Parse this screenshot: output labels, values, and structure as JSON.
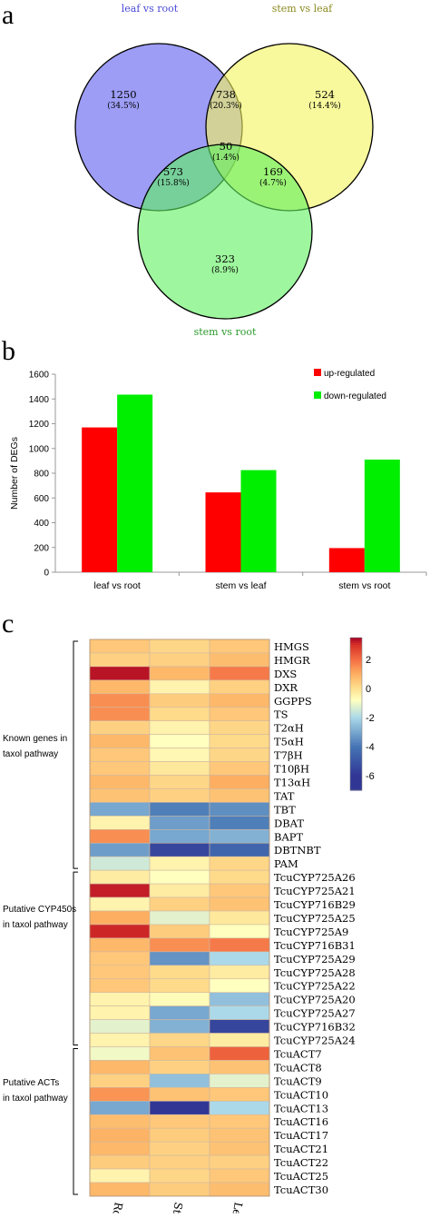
{
  "panels": {
    "a": "a",
    "b": "b",
    "c": "c"
  },
  "chart_data": [
    {
      "type": "venn",
      "sets": [
        {
          "name": "leaf vs root",
          "color": "#5b5bf0"
        },
        {
          "name": "stem vs leaf",
          "color": "#f3f35a"
        },
        {
          "name": "stem vs root",
          "color": "#5ef05e"
        }
      ],
      "regions": [
        {
          "sets": [
            "leaf vs root"
          ],
          "count": "1250",
          "percent": "(34.5%)"
        },
        {
          "sets": [
            "leaf vs root",
            "stem vs leaf"
          ],
          "count": "738",
          "percent": "(20.3%)"
        },
        {
          "sets": [
            "stem vs leaf"
          ],
          "count": "524",
          "percent": "(14.4%)"
        },
        {
          "sets": [
            "leaf vs root",
            "stem vs leaf",
            "stem vs root"
          ],
          "count": "50",
          "percent": "(1.4%)"
        },
        {
          "sets": [
            "leaf vs root",
            "stem vs root"
          ],
          "count": "573",
          "percent": "(15.8%)"
        },
        {
          "sets": [
            "stem vs leaf",
            "stem vs root"
          ],
          "count": "169",
          "percent": "(4.7%)"
        },
        {
          "sets": [
            "stem vs root"
          ],
          "count": "323",
          "percent": "(8.9%)"
        }
      ]
    },
    {
      "type": "bar",
      "categories": [
        "leaf vs root",
        "stem vs leaf",
        "stem vs root"
      ],
      "series": [
        {
          "name": "up-regulated",
          "color": "#ff0000",
          "values": [
            1170,
            645,
            195
          ]
        },
        {
          "name": "down-regulated",
          "color": "#00ee00",
          "values": [
            1435,
            825,
            910
          ]
        }
      ],
      "ylabel": "Number of DEGs",
      "ylim": [
        0,
        1600
      ],
      "yticks": [
        0,
        200,
        400,
        600,
        800,
        1000,
        1200,
        1400,
        1600
      ],
      "grid": false,
      "legend": "top-right"
    },
    {
      "type": "heatmap",
      "columns": [
        "Root",
        "Stem",
        "Leaf"
      ],
      "rows": [
        "HMGS",
        "HMGR",
        "DXS",
        "DXR",
        "GGPPS",
        "TS",
        "T2αH",
        "T5αH",
        "T7βH",
        "T10βH",
        "T13αH",
        "TAT",
        "TBT",
        "DBAT",
        "BAPT",
        "DBTNBT",
        "PAM",
        "TcuCYP725A26",
        "TcuCYP725A21",
        "TcuCYP716B29",
        "TcuCYP725A25",
        "TcuCYP725A9",
        "TcuCYP716B31",
        "TcuCYP725A29",
        "TcuCYP725A28",
        "TcuCYP725A22",
        "TcuCYP725A20",
        "TcuCYP725A27",
        "TcuCYP716B32",
        "TcuCYP725A24",
        "TcuACT7",
        "TcuACT8",
        "TcuACT9",
        "TcuACT10",
        "TcuACT13",
        "TcuACT16",
        "TcuACT17",
        "TcuACT21",
        "TcuACT22",
        "TcuACT25",
        "TcuACT30"
      ],
      "values": [
        [
          0.5,
          0.2,
          0.5
        ],
        [
          0.3,
          0.3,
          0.7
        ],
        [
          3.3,
          0.8,
          1.8
        ],
        [
          0.8,
          -0.5,
          0.3
        ],
        [
          1.5,
          0.4,
          0.8
        ],
        [
          1.5,
          0.1,
          0.5
        ],
        [
          0.3,
          -0.5,
          0.2
        ],
        [
          0.8,
          -0.8,
          0.1
        ],
        [
          0.5,
          -0.6,
          0.2
        ],
        [
          0.5,
          -0.2,
          0.5
        ],
        [
          0.8,
          0.2,
          1.0
        ],
        [
          0.6,
          0.3,
          0.6
        ],
        [
          -3.0,
          -3.8,
          -3.5
        ],
        [
          -0.5,
          -3.2,
          -3.8
        ],
        [
          1.5,
          -3.0,
          -2.8
        ],
        [
          -3.2,
          -5.5,
          -4.5
        ],
        [
          -1.5,
          -0.5,
          0.2
        ],
        [
          -0.3,
          -0.8,
          0.1
        ],
        [
          3.2,
          -0.3,
          0.5
        ],
        [
          -0.5,
          0.3,
          0.6
        ],
        [
          1.0,
          -1.2,
          -0.2
        ],
        [
          3.1,
          0.4,
          -0.8
        ],
        [
          0.8,
          1.5,
          1.8
        ],
        [
          0.5,
          -3.4,
          -2.0
        ],
        [
          0.5,
          0.1,
          -0.3
        ],
        [
          0.5,
          0.1,
          -0.8
        ],
        [
          -0.5,
          -0.7,
          -2.5
        ],
        [
          -0.5,
          -3.0,
          -2.0
        ],
        [
          -1.2,
          -2.8,
          -5.5
        ],
        [
          -0.5,
          0.2,
          -0.3
        ],
        [
          -1.0,
          0.6,
          2.2
        ],
        [
          0.8,
          0.3,
          0.6
        ],
        [
          0.3,
          -2.5,
          -1.2
        ],
        [
          1.4,
          0.6,
          0.5
        ],
        [
          -3.0,
          -6.5,
          -2.0
        ],
        [
          0.7,
          0.5,
          0.5
        ],
        [
          0.9,
          0.4,
          0.6
        ],
        [
          0.8,
          0.3,
          0.6
        ],
        [
          0.4,
          0.3,
          0.3
        ],
        [
          -0.5,
          0.2,
          0.5
        ],
        [
          0.8,
          0.4,
          0.7
        ]
      ],
      "groups": [
        {
          "label_lines": [
            "Known genes in",
            "taxol pathway"
          ]
        },
        {
          "label_lines": [
            "Putative CYP450s",
            "in taxol pathway"
          ]
        },
        {
          "label_lines": [
            "Putative ACTs",
            "in taxol pathway"
          ]
        }
      ],
      "colorbar": {
        "min": -7,
        "max": 3.5,
        "ticks": [
          2,
          0,
          -2,
          -4,
          -6
        ]
      }
    }
  ]
}
